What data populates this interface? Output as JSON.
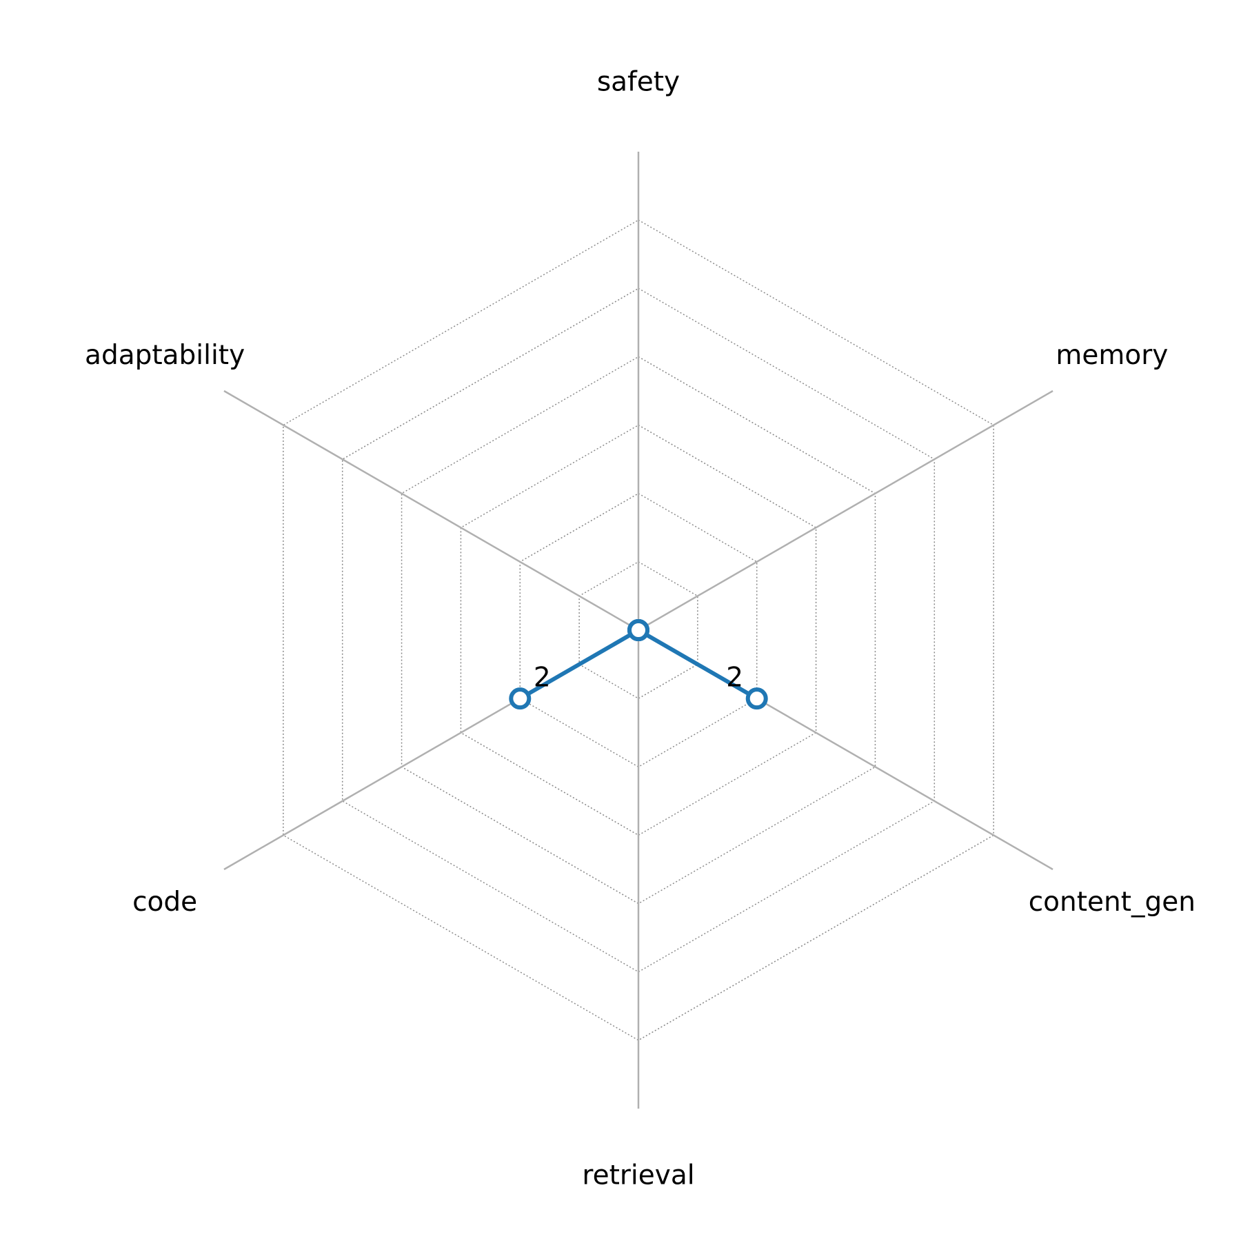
{
  "chart_data": {
    "type": "radar",
    "categories": [
      "safety",
      "memory",
      "content_gen",
      "retrieval",
      "code",
      "adaptability"
    ],
    "series": [
      {
        "color": "#1f77b4",
        "values": [
          0,
          0,
          2,
          0,
          2,
          0
        ]
      }
    ],
    "rlim": [
      0,
      7
    ],
    "rticks": [
      1,
      2,
      3,
      4,
      5,
      6
    ],
    "grid": true
  }
}
